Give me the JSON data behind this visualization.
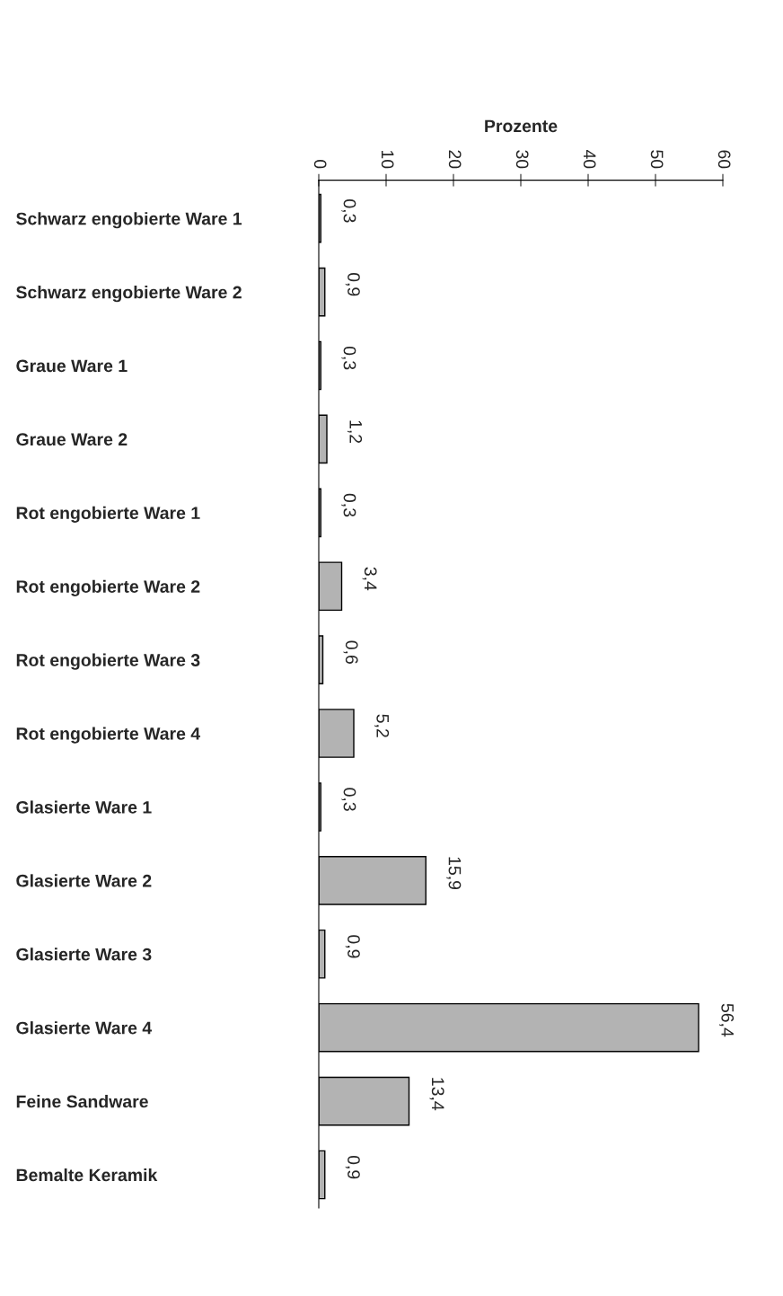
{
  "chart_data": {
    "type": "bar",
    "orientation": "horizontal",
    "xlabel": "Prozente",
    "categories": [
      "Schwarz engobierte Ware 1",
      "Schwarz engobierte Ware 2",
      "Graue Ware 1",
      "Graue Ware 2",
      "Rot engobierte Ware 1",
      "Rot engobierte Ware 2",
      "Rot engobierte Ware 3",
      "Rot engobierte Ware 4",
      "Glasierte Ware 1",
      "Glasierte Ware 2",
      "Glasierte Ware 3",
      "Glasierte Ware 4",
      "Feine Sandware",
      "Bemalte Keramik"
    ],
    "values": [
      0.3,
      0.9,
      0.3,
      1.2,
      0.3,
      3.4,
      0.6,
      5.2,
      0.3,
      15.9,
      0.9,
      56.4,
      13.4,
      0.9
    ],
    "value_labels": [
      "0,3",
      "0,9",
      "0,3",
      "1,2",
      "0,3",
      "3,4",
      "0,6",
      "5,2",
      "0,3",
      "15,9",
      "0,9",
      "56,4",
      "13,4",
      "0,9"
    ],
    "color": "#b3b3b3",
    "xlim": [
      0,
      60
    ],
    "xticks": [
      0,
      10,
      20,
      30,
      40,
      50,
      60
    ]
  }
}
